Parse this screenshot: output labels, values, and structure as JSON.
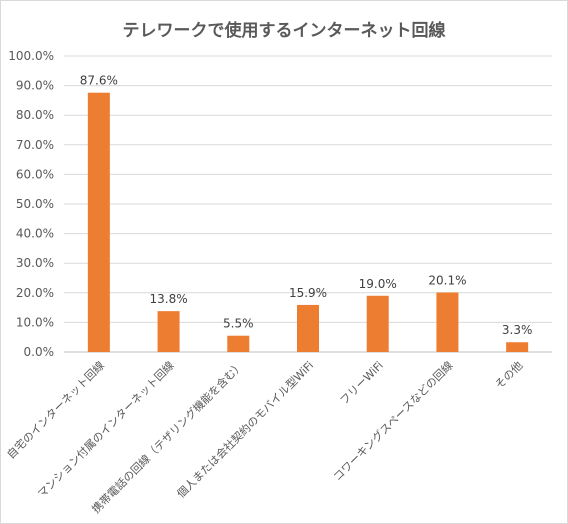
{
  "chart_data": {
    "type": "bar",
    "title": "テレワークで使用するインターネット回線",
    "categories": [
      "自宅のインターネット回線",
      "マンション付属のインターネット回線",
      "携帯電話の回線（テザリング機能を含む）",
      "個人または会社契約のモバイル型WiFi",
      "フリーWiFi",
      "コワーキングスペースなどの回線",
      "その他"
    ],
    "values": [
      87.6,
      13.8,
      5.5,
      15.9,
      19.0,
      20.1,
      3.3
    ],
    "value_labels": [
      "87.6%",
      "13.8%",
      "5.5%",
      "15.9%",
      "19.0%",
      "20.1%",
      "3.3%"
    ],
    "ylim": [
      0,
      100
    ],
    "y_ticks": [
      "0.0%",
      "10.0%",
      "20.0%",
      "30.0%",
      "40.0%",
      "50.0%",
      "60.0%",
      "70.0%",
      "80.0%",
      "90.0%",
      "100.0%"
    ],
    "bar_color": "#ED7D31",
    "grid": true,
    "xlabel": "",
    "ylabel": ""
  }
}
